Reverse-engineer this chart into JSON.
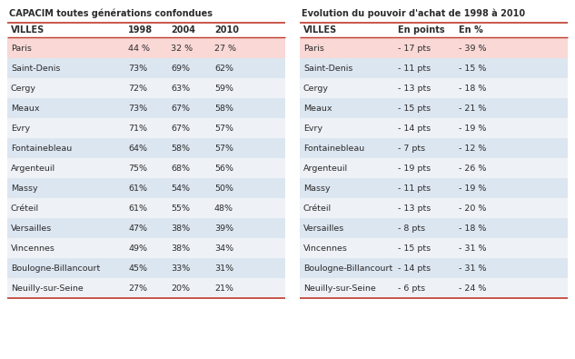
{
  "title_left": "CAPACIM toutes générations confondues",
  "title_right": "Evolution du pouvoir d'achat de 1998 à 2010",
  "left_headers": [
    "VILLES",
    "1998",
    "2004",
    "2010"
  ],
  "right_headers": [
    "VILLES",
    "En points",
    "En %"
  ],
  "cities": [
    "Paris",
    "Saint-Denis",
    "Cergy",
    "Meaux",
    "Evry",
    "Fontainebleau",
    "Argenteuil",
    "Massy",
    "Créteil",
    "Versailles",
    "Vincennes",
    "Boulogne-Billancourt",
    "Neuilly-sur-Seine"
  ],
  "left_data": [
    [
      "44 %",
      "32 %",
      "27 %"
    ],
    [
      "73%",
      "69%",
      "62%"
    ],
    [
      "72%",
      "63%",
      "59%"
    ],
    [
      "73%",
      "67%",
      "58%"
    ],
    [
      "71%",
      "67%",
      "57%"
    ],
    [
      "64%",
      "58%",
      "57%"
    ],
    [
      "75%",
      "68%",
      "56%"
    ],
    [
      "61%",
      "54%",
      "50%"
    ],
    [
      "61%",
      "55%",
      "48%"
    ],
    [
      "47%",
      "38%",
      "39%"
    ],
    [
      "49%",
      "38%",
      "34%"
    ],
    [
      "45%",
      "33%",
      "31%"
    ],
    [
      "27%",
      "20%",
      "21%"
    ]
  ],
  "right_data": [
    [
      "- 17 pts",
      "- 39 %"
    ],
    [
      "- 11 pts",
      "- 15 %"
    ],
    [
      "- 13 pts",
      "- 18 %"
    ],
    [
      "- 15 pts",
      "- 21 %"
    ],
    [
      "- 14 pts",
      "- 19 %"
    ],
    [
      "- 7 pts",
      "- 12 %"
    ],
    [
      "- 19 pts",
      "- 26 %"
    ],
    [
      "- 11 pts",
      "- 19 %"
    ],
    [
      "- 13 pts",
      "- 20 %"
    ],
    [
      "- 8 pts",
      "- 18 %"
    ],
    [
      "- 15 pts",
      "- 31 %"
    ],
    [
      "- 14 pts",
      "- 31 %"
    ],
    [
      "- 6 pts",
      "- 24 %"
    ]
  ],
  "row_bg_paris": "#f9d8d6",
  "row_bg_blue": "#dce6f1",
  "row_bg_light": "#eef2f7",
  "header_line_color": "#c0392b",
  "title_color": "#1a1a2e",
  "text_color": "#2c2c2c",
  "bg_color": "#ffffff",
  "divider_color": "#c0392b",
  "title_fs": 7.0,
  "header_fs": 7.0,
  "data_fs": 6.8
}
